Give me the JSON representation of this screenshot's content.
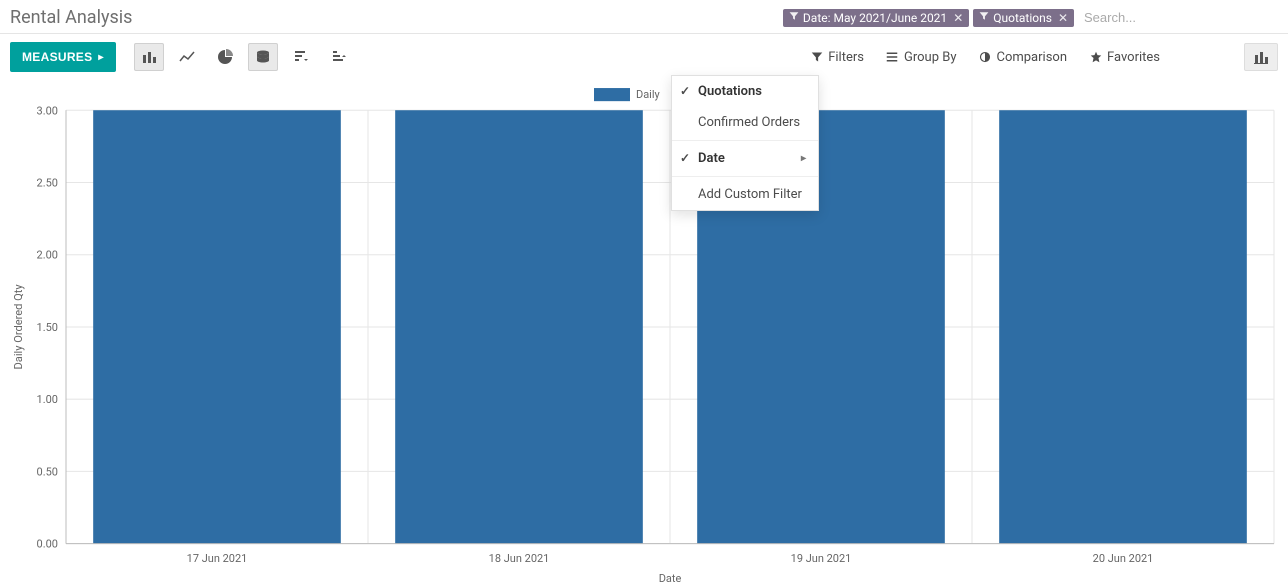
{
  "page": {
    "title": "Rental Analysis"
  },
  "search": {
    "placeholder": "Search...",
    "tags": [
      {
        "label": "Date: May 2021/June 2021"
      },
      {
        "label": "Quotations"
      }
    ]
  },
  "toolbar": {
    "measures_label": "MEASURES",
    "buttons": [
      "bar-chart",
      "line-chart",
      "pie-chart",
      "stack-chart",
      "sort-desc",
      "sort-asc"
    ],
    "active_index": 3
  },
  "view_nav": {
    "filters": "Filters",
    "group_by": "Group By",
    "comparison": "Comparison",
    "favorites": "Favorites"
  },
  "filters_dropdown": {
    "quotations": "Quotations",
    "confirmed_orders": "Confirmed Orders",
    "date": "Date",
    "add_custom": "Add Custom Filter"
  },
  "chart": {
    "type": "bar",
    "legend_label": "Daily",
    "x_axis_label": "Date",
    "y_axis_label": "Daily Ordered Qty",
    "categories": [
      "17 Jun 2021",
      "18 Jun 2021",
      "19 Jun 2021",
      "20 Jun 2021"
    ],
    "values": [
      3.0,
      3.0,
      3.0,
      3.0
    ],
    "ylim": [
      0,
      3.0
    ],
    "ytick_step": 0.5,
    "yticks": [
      "0.00",
      "0.50",
      "1.00",
      "1.50",
      "2.00",
      "2.50",
      "3.00"
    ],
    "bar_color": "#2e6da4",
    "grid_color": "#e6e6e6",
    "border_color": "#bcbcbc",
    "background_color": "#ffffff",
    "bar_width_ratio": 0.82,
    "label_fontsize": 11
  }
}
